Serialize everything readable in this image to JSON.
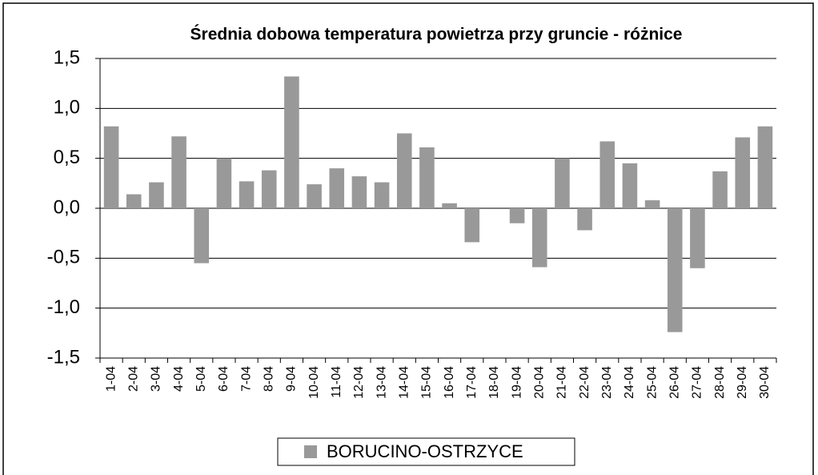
{
  "chart_data": {
    "type": "bar",
    "title": "Średnia dobowa temperatura powietrza przy gruncie - różnice",
    "categories": [
      "1-04",
      "2-04",
      "3-04",
      "4-04",
      "5-04",
      "6-04",
      "7-04",
      "8-04",
      "9-04",
      "10-04",
      "11-04",
      "12-04",
      "13-04",
      "14-04",
      "15-04",
      "16-04",
      "17-04",
      "18-04",
      "19-04",
      "20-04",
      "21-04",
      "22-04",
      "23-04",
      "24-04",
      "25-04",
      "26-04",
      "27-04",
      "28-04",
      "29-04",
      "30-04"
    ],
    "series": [
      {
        "name": "BORUCINO-OSTRZYCE",
        "color": "#999999",
        "values": [
          0.82,
          0.14,
          0.26,
          0.72,
          -0.55,
          0.5,
          0.27,
          0.38,
          1.32,
          0.24,
          0.4,
          0.32,
          0.26,
          0.75,
          0.61,
          0.05,
          -0.34,
          0,
          -0.15,
          -0.59,
          0.5,
          -0.22,
          0.67,
          0.45,
          0.08,
          -1.24,
          -0.6,
          0.37,
          0.71,
          0.82
        ]
      }
    ],
    "ylim": [
      -1.5,
      1.5
    ],
    "yticks": [
      {
        "value": -1.5,
        "label": "-1,5"
      },
      {
        "value": -1.0,
        "label": "-1,0"
      },
      {
        "value": -0.5,
        "label": "-0,5"
      },
      {
        "value": 0,
        "label": "0,0"
      },
      {
        "value": 0.5,
        "label": "0,5"
      },
      {
        "value": 1.0,
        "label": "1,0"
      },
      {
        "value": 1.5,
        "label": "1,5"
      }
    ],
    "grid": true,
    "legend": "bottom"
  }
}
